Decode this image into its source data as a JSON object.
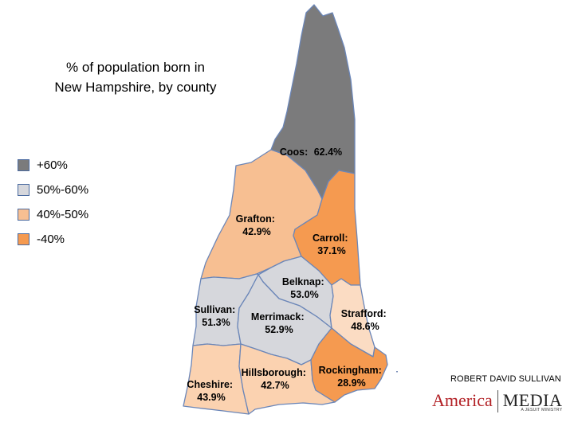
{
  "title": {
    "line1": "% of population born in",
    "line2": "New Hampshire, by county"
  },
  "legend": [
    {
      "label": "+60%",
      "color": "#7b7b7c"
    },
    {
      "label": "50%-60%",
      "color": "#d6d7dc"
    },
    {
      "label": "40%-50%",
      "color": "#f7bf92"
    },
    {
      "label": "-40%",
      "color": "#f59a50"
    }
  ],
  "counties": [
    {
      "name": "Coos:",
      "value": "62.4%",
      "color": "#7b7b7c"
    },
    {
      "name": "Grafton:",
      "value": "42.9%",
      "color": "#f7bf92"
    },
    {
      "name": "Carroll:",
      "value": "37.1%",
      "color": "#f59a50"
    },
    {
      "name": "Belknap:",
      "value": "53.0%",
      "color": "#d6d7dc"
    },
    {
      "name": "Sullivan:",
      "value": "51.3%",
      "color": "#d6d7dc"
    },
    {
      "name": "Merrimack:",
      "value": "52.9%",
      "color": "#d6d7dc"
    },
    {
      "name": "Strafford:",
      "value": "48.6%",
      "color": "#fbdcc3"
    },
    {
      "name": "Cheshire:",
      "value": "43.9%",
      "color": "#fbd2b0"
    },
    {
      "name": "Hillsborough:",
      "value": "42.7%",
      "color": "#fbd2b0"
    },
    {
      "name": "Rockingham:",
      "value": "28.9%",
      "color": "#f59a50"
    }
  ],
  "credit": "ROBERT DAVID SULLIVAN",
  "logo": {
    "america": "America",
    "media": "MEDIA",
    "tagline": "A JESUIT MINISTRY"
  }
}
